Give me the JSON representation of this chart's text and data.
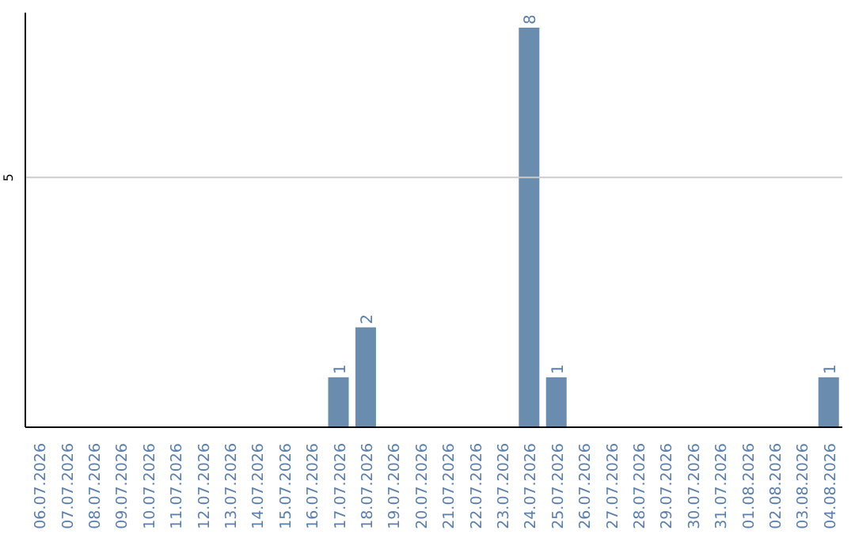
{
  "chart_data": {
    "type": "bar",
    "categories": [
      "06.07.2026",
      "07.07.2026",
      "08.07.2026",
      "09.07.2026",
      "10.07.2026",
      "11.07.2026",
      "12.07.2026",
      "13.07.2026",
      "14.07.2026",
      "15.07.2026",
      "16.07.2026",
      "17.07.2026",
      "18.07.2026",
      "19.07.2026",
      "20.07.2026",
      "21.07.2026",
      "22.07.2026",
      "23.07.2026",
      "24.07.2026",
      "25.07.2026",
      "26.07.2026",
      "27.07.2026",
      "28.07.2026",
      "29.07.2026",
      "30.07.2026",
      "31.07.2026",
      "01.08.2026",
      "02.08.2026",
      "03.08.2026",
      "04.08.2026"
    ],
    "values": [
      0,
      0,
      0,
      0,
      0,
      0,
      0,
      0,
      0,
      0,
      0,
      1,
      2,
      0,
      0,
      0,
      0,
      0,
      8,
      1,
      0,
      0,
      0,
      0,
      0,
      0,
      0,
      0,
      0,
      1
    ],
    "value_labels": [
      null,
      null,
      null,
      null,
      null,
      null,
      null,
      null,
      null,
      null,
      null,
      "1",
      "2",
      null,
      null,
      null,
      null,
      null,
      "8",
      "1",
      null,
      null,
      null,
      null,
      null,
      null,
      null,
      null,
      null,
      "1"
    ],
    "color": "#6a8caf",
    "ylim": [
      0,
      8.3
    ],
    "yticks": [
      5
    ],
    "grid": "y",
    "legend": false
  }
}
